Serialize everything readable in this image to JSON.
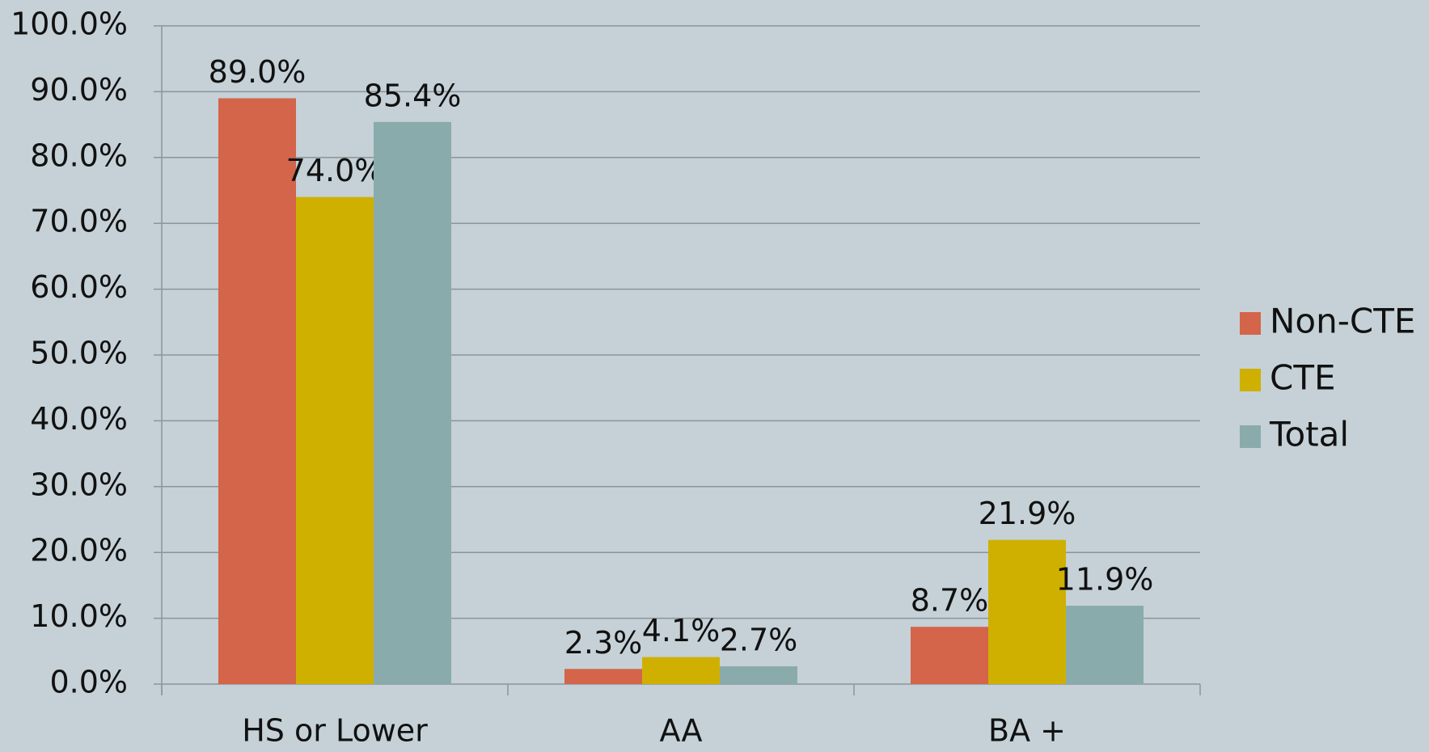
{
  "chart_data": {
    "type": "bar",
    "categories": [
      "HS or Lower",
      "AA",
      "BA +"
    ],
    "series": [
      {
        "name": "Non-CTE",
        "color": "#d4644a",
        "values": [
          89.0,
          2.3,
          8.7
        ],
        "value_labels": [
          "89.0%",
          "2.3%",
          "8.7%"
        ]
      },
      {
        "name": "CTE",
        "color": "#cfb000",
        "values": [
          74.0,
          4.1,
          21.9
        ],
        "value_labels": [
          "74.0%",
          "4.1%",
          "21.9%"
        ]
      },
      {
        "name": "Total",
        "color": "#8aabab",
        "values": [
          85.4,
          2.7,
          11.9
        ],
        "value_labels": [
          "85.4%",
          "2.7%",
          "11.9%"
        ]
      }
    ],
    "ylim": [
      0,
      100
    ],
    "yticks": [
      {
        "value": 0,
        "label": "0.0%"
      },
      {
        "value": 10,
        "label": "10.0%"
      },
      {
        "value": 20,
        "label": "20.0%"
      },
      {
        "value": 30,
        "label": "30.0%"
      },
      {
        "value": 40,
        "label": "40.0%"
      },
      {
        "value": 50,
        "label": "50.0%"
      },
      {
        "value": 60,
        "label": "60.0%"
      },
      {
        "value": 70,
        "label": "70.0%"
      },
      {
        "value": 80,
        "label": "80.0%"
      },
      {
        "value": 90,
        "label": "90.0%"
      },
      {
        "value": 100,
        "label": "100.0%"
      }
    ],
    "grid": true,
    "legend": "right"
  }
}
